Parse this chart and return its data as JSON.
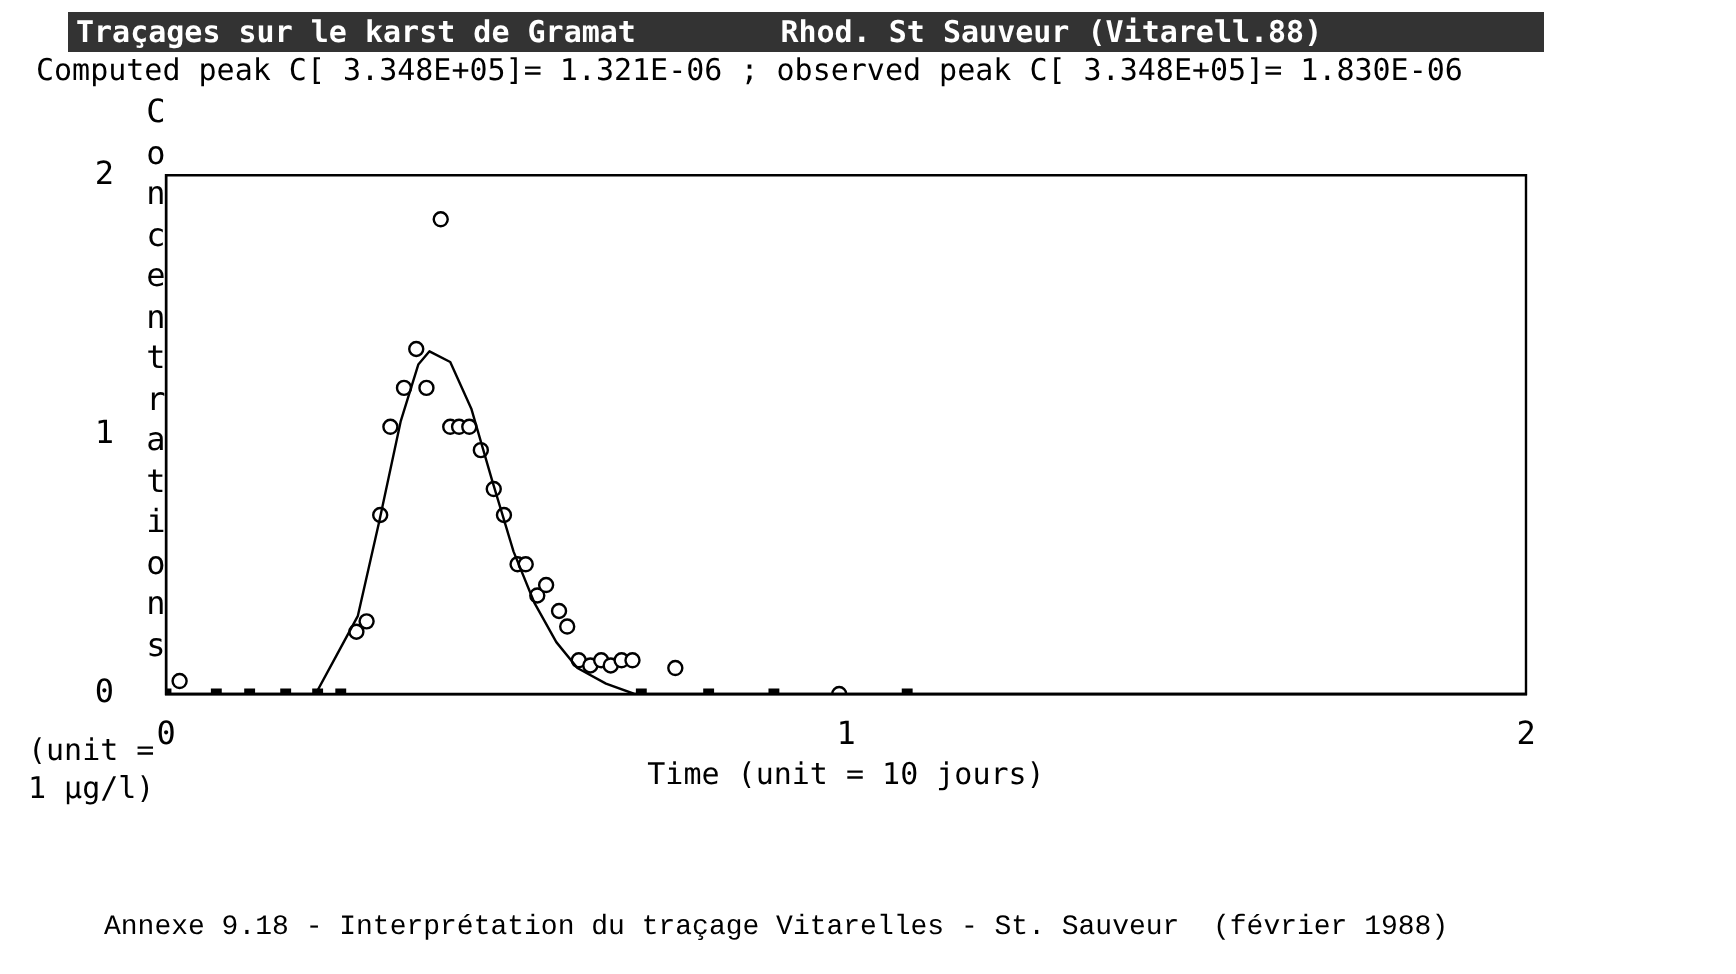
{
  "chart_data": {
    "type": "scatter",
    "title": "Traçages sur le karst de Gramat        Rhod. St Sauveur (Vitarell.88)",
    "subtitle": "Computed peak C[ 3.348E+05]= 1.321E-06 ; observed peak C[ 3.348E+05]= 1.830E-06",
    "xlabel": "Time (unit = 10 jours)",
    "ylabel": "Concentrations (unit = 1 µg/l)",
    "annotations": [
      "Annexe 9.18 - Interprétation du traçage Vitarelles - St. Sauveur  (février 1988)"
    ],
    "xlim": [
      0,
      2
    ],
    "ylim": [
      0,
      2
    ],
    "xticks": [
      0,
      1,
      2
    ],
    "yticks": [
      0,
      1,
      2
    ],
    "grid": false,
    "legend": false,
    "series": [
      {
        "type": "line",
        "marker": "none",
        "color": "#000000",
        "x": [
          0,
          0.22,
          0.251,
          0.282,
          0.314,
          0.345,
          0.371,
          0.3875,
          0.418,
          0.449,
          0.48,
          0.511,
          0.542,
          0.574,
          0.605,
          0.647,
          0.689,
          2
        ],
        "values": [
          0,
          0,
          0.15,
          0.3,
          0.67,
          1.05,
          1.27,
          1.321,
          1.28,
          1.1,
          0.82,
          0.55,
          0.35,
          0.2,
          0.1,
          0.04,
          0,
          0
        ]
      },
      {
        "type": "scatter",
        "marker": "circle",
        "color": "#000000",
        "x": [
          0.02,
          0.28,
          0.295,
          0.315,
          0.33,
          0.35,
          0.368,
          0.383,
          0.404,
          0.418,
          0.431,
          0.446,
          0.463,
          0.482,
          0.497,
          0.517,
          0.529,
          0.546,
          0.559,
          0.578,
          0.59,
          0.607,
          0.624,
          0.64,
          0.654,
          0.67,
          0.686,
          0.749,
          0.99
        ],
        "values": [
          0.05,
          0.24,
          0.28,
          0.69,
          1.03,
          1.18,
          1.33,
          1.18,
          1.83,
          1.03,
          1.03,
          1.03,
          0.94,
          0.79,
          0.69,
          0.5,
          0.5,
          0.38,
          0.42,
          0.32,
          0.26,
          0.13,
          0.11,
          0.13,
          0.11,
          0.13,
          0.13,
          0.1,
          0
        ]
      },
      {
        "type": "scatter",
        "marker": "square",
        "color": "#000000",
        "x": [
          0,
          0.074,
          0.123,
          0.176,
          0.223,
          0.257,
          0.699,
          0.798,
          0.894,
          1.09
        ],
        "values": [
          0,
          0,
          0,
          0,
          0,
          0,
          0,
          0,
          0,
          0
        ]
      }
    ]
  }
}
